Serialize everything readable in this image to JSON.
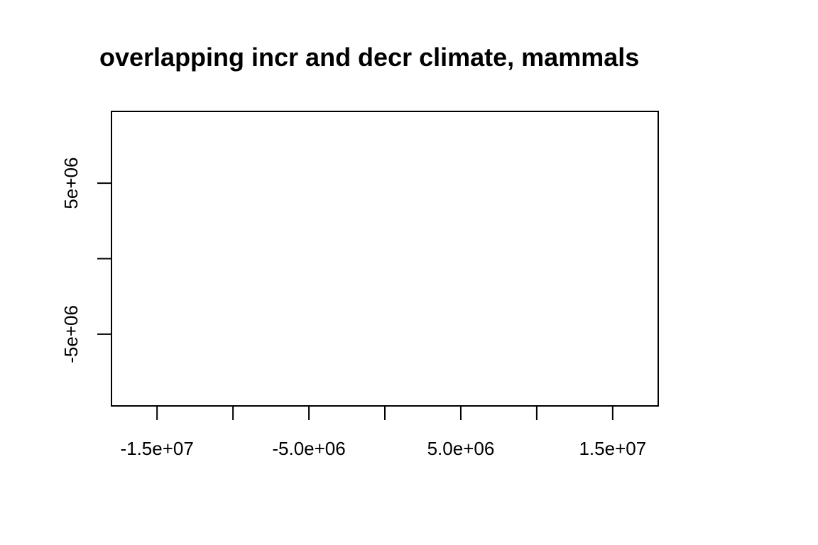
{
  "chart_data": {
    "type": "scatter",
    "title": "overlapping incr and decr climate, mammals",
    "xlabel": "",
    "ylabel": "",
    "xlim": [
      -18000000,
      18000000
    ],
    "ylim": [
      -9750000,
      9750000
    ],
    "x_ticks": [
      {
        "value": -15000000,
        "label": "-1.5e+07"
      },
      {
        "value": -10000000,
        "label": ""
      },
      {
        "value": -5000000,
        "label": "-5.0e+06"
      },
      {
        "value": 0,
        "label": ""
      },
      {
        "value": 5000000,
        "label": "5.0e+06"
      },
      {
        "value": 10000000,
        "label": ""
      },
      {
        "value": 15000000,
        "label": "1.5e+07"
      }
    ],
    "y_ticks": [
      {
        "value": -5000000,
        "label": "-5e+06"
      },
      {
        "value": 0,
        "label": ""
      },
      {
        "value": 5000000,
        "label": "5e+06"
      }
    ],
    "series": [],
    "grid": false,
    "legend": "none",
    "colors": {
      "frame": "#000000",
      "background": "#ffffff",
      "text": "#000000"
    }
  }
}
